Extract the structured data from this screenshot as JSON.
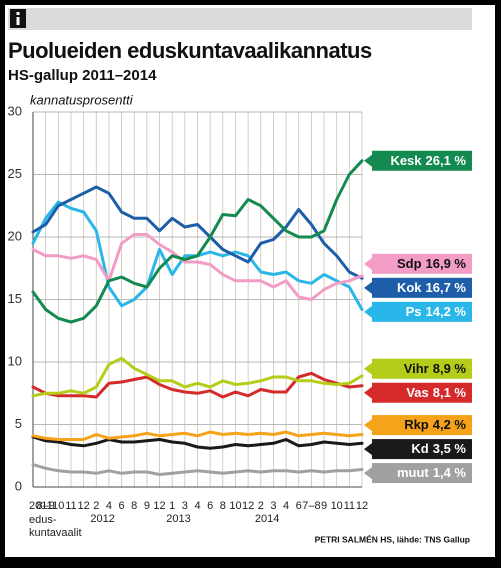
{
  "chart_data": {
    "type": "line",
    "title": "Puolueiden eduskuntavaalikannatus",
    "subtitle": "HS-gallup 2011–2014",
    "y_label": "kannatusprosentti",
    "source": "PETRI SALMÉN HS, lähde: TNS Gallup",
    "first_category_note": [
      "edus-",
      "kuntavaalit"
    ],
    "categories": [
      "2011",
      "8–9",
      "10",
      "11",
      "12",
      "2",
      "4",
      "6",
      "8",
      "9",
      "12",
      "1",
      "3",
      "4",
      "6",
      "8",
      "10",
      "12",
      "2",
      "3",
      "4",
      "6",
      "7–8",
      "9",
      "10",
      "11",
      "12"
    ],
    "groups": [
      {
        "label": "2012",
        "from": 5,
        "to": 10
      },
      {
        "label": "2013",
        "from": 11,
        "to": 17
      },
      {
        "label": "2014",
        "from": 18,
        "to": 26
      }
    ],
    "ylim": [
      0,
      30
    ],
    "yticks": [
      0,
      5,
      10,
      15,
      20,
      25,
      30
    ],
    "grid": true,
    "series": [
      {
        "name": "Kesk",
        "color": "#138a4f",
        "values": [
          15.6,
          14.2,
          13.5,
          13.2,
          13.5,
          14.5,
          16.5,
          16.8,
          16.3,
          16.0,
          17.5,
          18.5,
          18.2,
          18.5,
          20.0,
          21.8,
          21.7,
          23.0,
          22.5,
          21.5,
          20.5,
          20.0,
          20.0,
          20.5,
          23.0,
          25.0,
          26.1
        ],
        "value_labels": [
          null,
          null,
          null,
          null,
          null,
          null,
          null,
          null,
          null,
          null,
          null,
          null,
          null,
          null,
          null,
          null,
          null,
          null,
          null,
          null,
          null,
          null,
          null,
          null,
          null,
          null,
          "26,1 %"
        ]
      },
      {
        "name": "Sdp",
        "color": "#f29cc6",
        "values": [
          19.0,
          18.5,
          18.5,
          18.3,
          18.5,
          18.2,
          16.5,
          19.5,
          20.2,
          20.2,
          19.4,
          18.8,
          18.0,
          18.0,
          17.8,
          17.0,
          16.5,
          16.5,
          16.5,
          16.0,
          16.5,
          15.2,
          15.0,
          15.8,
          16.3,
          16.5,
          16.9
        ],
        "value_labels": [
          null,
          null,
          null,
          null,
          null,
          null,
          null,
          null,
          null,
          null,
          null,
          null,
          null,
          null,
          null,
          null,
          null,
          null,
          null,
          null,
          null,
          null,
          null,
          null,
          null,
          null,
          "16,9 %"
        ]
      },
      {
        "name": "Kok",
        "color": "#1e5ea8",
        "values": [
          20.4,
          21.0,
          22.5,
          23.0,
          23.5,
          24.0,
          23.5,
          22.0,
          21.5,
          21.5,
          20.5,
          21.5,
          20.8,
          21.0,
          20.0,
          19.0,
          18.5,
          18.0,
          19.5,
          19.8,
          20.8,
          22.2,
          21.0,
          19.5,
          18.5,
          17.2,
          16.7
        ],
        "value_labels": [
          null,
          null,
          null,
          null,
          null,
          null,
          null,
          null,
          null,
          null,
          null,
          null,
          null,
          null,
          null,
          null,
          null,
          null,
          null,
          null,
          null,
          null,
          null,
          null,
          null,
          null,
          "16,7 %"
        ]
      },
      {
        "name": "Ps",
        "color": "#29b6e8",
        "values": [
          19.5,
          21.5,
          22.8,
          22.3,
          22.0,
          20.5,
          16.0,
          14.5,
          15.0,
          16.0,
          19.0,
          17.0,
          18.5,
          18.5,
          18.8,
          18.5,
          18.8,
          18.5,
          17.2,
          17.0,
          17.2,
          16.5,
          16.3,
          17.0,
          16.5,
          16.0,
          14.2
        ],
        "value_labels": [
          null,
          null,
          null,
          null,
          null,
          null,
          null,
          null,
          null,
          null,
          null,
          null,
          null,
          null,
          null,
          null,
          null,
          null,
          null,
          null,
          null,
          null,
          null,
          null,
          null,
          null,
          "14,2 %"
        ]
      },
      {
        "name": "Vihr",
        "color": "#b5cc18",
        "values": [
          7.3,
          7.5,
          7.5,
          7.7,
          7.5,
          8.0,
          9.8,
          10.3,
          9.5,
          9.0,
          8.5,
          8.5,
          8.0,
          8.3,
          8.0,
          8.5,
          8.2,
          8.3,
          8.5,
          8.8,
          8.8,
          8.5,
          8.5,
          8.3,
          8.2,
          8.3,
          8.9
        ],
        "value_labels": [
          null,
          null,
          null,
          null,
          null,
          null,
          null,
          null,
          null,
          null,
          null,
          null,
          null,
          null,
          null,
          null,
          null,
          null,
          null,
          null,
          null,
          null,
          null,
          null,
          null,
          null,
          "8,9 %"
        ]
      },
      {
        "name": "Vas",
        "color": "#d42a2a",
        "values": [
          8.0,
          7.5,
          7.3,
          7.3,
          7.3,
          7.2,
          8.3,
          8.4,
          8.6,
          8.8,
          8.2,
          7.8,
          7.6,
          7.5,
          7.7,
          7.2,
          7.6,
          7.3,
          7.8,
          7.6,
          7.6,
          8.8,
          9.1,
          8.6,
          8.3,
          8.0,
          8.1
        ],
        "value_labels": [
          null,
          null,
          null,
          null,
          null,
          null,
          null,
          null,
          null,
          null,
          null,
          null,
          null,
          null,
          null,
          null,
          null,
          null,
          null,
          null,
          null,
          null,
          null,
          null,
          null,
          null,
          "8,1 %"
        ]
      },
      {
        "name": "Rkp",
        "color": "#f5a31a",
        "values": [
          4.1,
          3.9,
          3.8,
          3.8,
          3.8,
          4.2,
          3.9,
          4.0,
          4.1,
          4.3,
          4.1,
          4.2,
          4.3,
          4.1,
          4.4,
          4.2,
          4.3,
          4.2,
          4.3,
          4.2,
          4.4,
          4.1,
          4.2,
          4.3,
          4.2,
          4.1,
          4.2
        ],
        "value_labels": [
          null,
          null,
          null,
          null,
          null,
          null,
          null,
          null,
          null,
          null,
          null,
          null,
          null,
          null,
          null,
          null,
          null,
          null,
          null,
          null,
          null,
          null,
          null,
          null,
          null,
          null,
          "4,2 %"
        ]
      },
      {
        "name": "Kd",
        "color": "#1a1a1a",
        "values": [
          4.0,
          3.7,
          3.6,
          3.4,
          3.3,
          3.5,
          3.8,
          3.6,
          3.6,
          3.7,
          3.8,
          3.6,
          3.5,
          3.2,
          3.1,
          3.2,
          3.4,
          3.3,
          3.4,
          3.5,
          3.8,
          3.3,
          3.4,
          3.6,
          3.5,
          3.4,
          3.5
        ],
        "value_labels": [
          null,
          null,
          null,
          null,
          null,
          null,
          null,
          null,
          null,
          null,
          null,
          null,
          null,
          null,
          null,
          null,
          null,
          null,
          null,
          null,
          null,
          null,
          null,
          null,
          null,
          null,
          "3,5 %"
        ]
      },
      {
        "name": "muut",
        "color": "#a0a0a0",
        "values": [
          1.8,
          1.5,
          1.3,
          1.2,
          1.2,
          1.1,
          1.3,
          1.1,
          1.2,
          1.2,
          1.0,
          1.1,
          1.2,
          1.3,
          1.2,
          1.1,
          1.2,
          1.3,
          1.2,
          1.3,
          1.3,
          1.2,
          1.3,
          1.2,
          1.3,
          1.3,
          1.4
        ],
        "value_labels": [
          null,
          null,
          null,
          null,
          null,
          null,
          null,
          null,
          null,
          null,
          null,
          null,
          null,
          null,
          null,
          null,
          null,
          null,
          null,
          null,
          null,
          null,
          null,
          null,
          null,
          null,
          "1,4 %"
        ]
      }
    ]
  }
}
